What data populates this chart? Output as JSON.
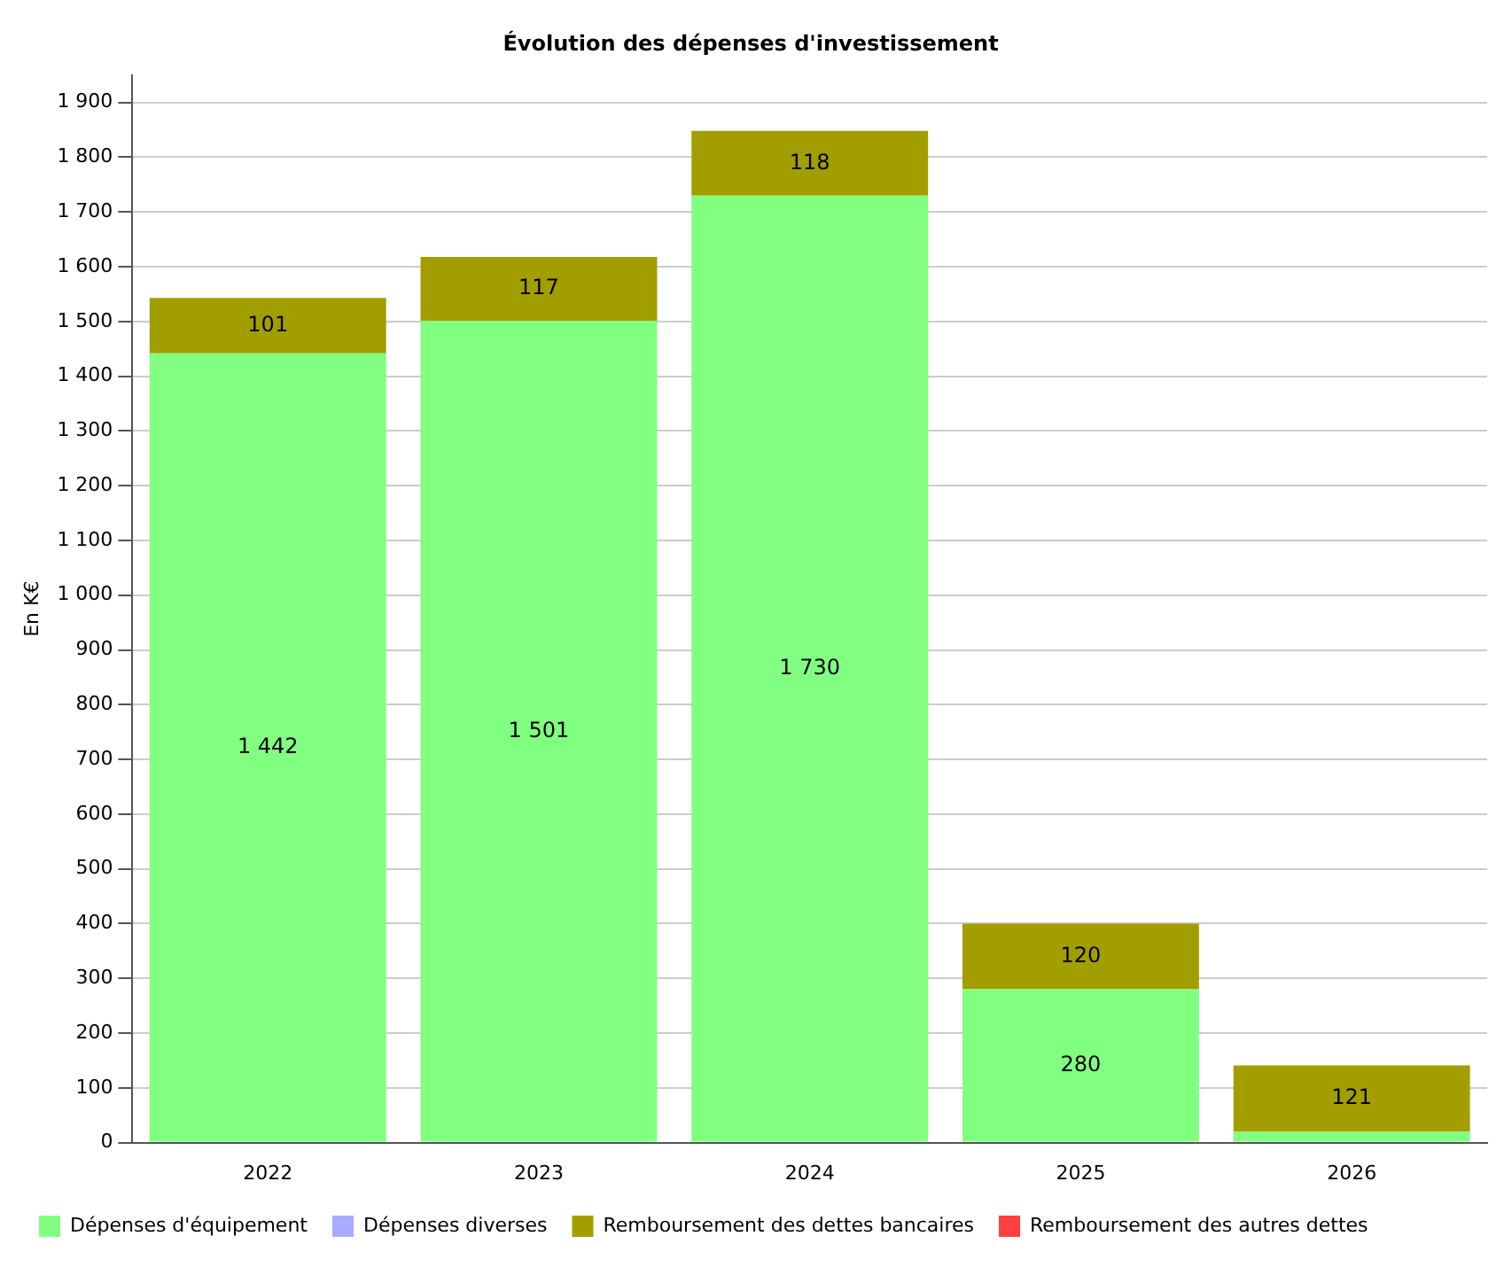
{
  "chart_data": {
    "type": "bar",
    "title": "Évolution des dépenses d'investissement",
    "ylabel": "En K€",
    "categories": [
      "2022",
      "2023",
      "2024",
      "2025",
      "2026"
    ],
    "stacked": true,
    "ylim": [
      0,
      1950
    ],
    "yticks": [
      {
        "value": 0,
        "label": "0"
      },
      {
        "value": 100,
        "label": "100"
      },
      {
        "value": 200,
        "label": "200"
      },
      {
        "value": 300,
        "label": "300"
      },
      {
        "value": 400,
        "label": "400"
      },
      {
        "value": 500,
        "label": "500"
      },
      {
        "value": 600,
        "label": "600"
      },
      {
        "value": 700,
        "label": "700"
      },
      {
        "value": 800,
        "label": "800"
      },
      {
        "value": 900,
        "label": "900"
      },
      {
        "value": 1000,
        "label": "1 000"
      },
      {
        "value": 1100,
        "label": "1 100"
      },
      {
        "value": 1200,
        "label": "1 200"
      },
      {
        "value": 1300,
        "label": "1 300"
      },
      {
        "value": 1400,
        "label": "1 400"
      },
      {
        "value": 1500,
        "label": "1 500"
      },
      {
        "value": 1600,
        "label": "1 600"
      },
      {
        "value": 1700,
        "label": "1 700"
      },
      {
        "value": 1800,
        "label": "1 800"
      },
      {
        "value": 1900,
        "label": "1 900"
      }
    ],
    "grid": "y",
    "legend": "bottom",
    "series": [
      {
        "name": "Dépenses d'équipement",
        "color": "#80ff80",
        "values": [
          1442,
          1501,
          1730,
          280,
          20
        ],
        "value_labels": [
          "1 442",
          "1 501",
          "1 730",
          "280",
          null
        ]
      },
      {
        "name": "Dépenses diverses",
        "color": "#aaaaff",
        "values": [
          null,
          null,
          null,
          null,
          null
        ]
      },
      {
        "name": "Remboursement des dettes bancaires",
        "color": "#a39e00",
        "values": [
          101,
          117,
          118,
          120,
          121
        ],
        "value_labels": [
          "101",
          "117",
          "118",
          "120",
          "121"
        ]
      },
      {
        "name": "Remboursement des autres dettes",
        "color": "#ff4040",
        "values": [
          null,
          null,
          null,
          null,
          null
        ]
      }
    ]
  }
}
